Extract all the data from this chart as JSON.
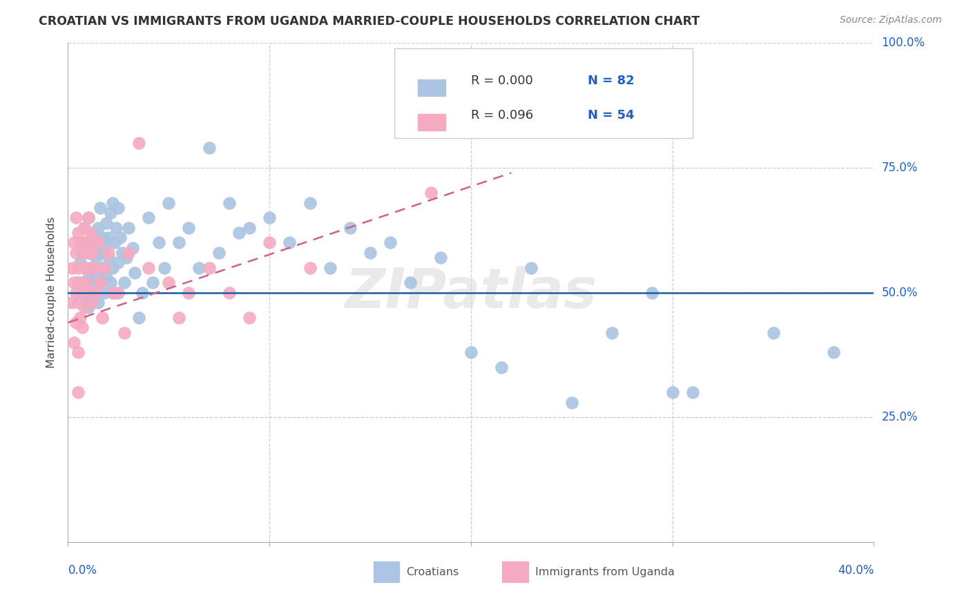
{
  "title": "CROATIAN VS IMMIGRANTS FROM UGANDA MARRIED-COUPLE HOUSEHOLDS CORRELATION CHART",
  "source": "Source: ZipAtlas.com",
  "ylabel": "Married-couple Households",
  "legend1_r": "0.000",
  "legend1_n": "82",
  "legend2_r": "0.096",
  "legend2_n": "54",
  "blue_color": "#aac4e2",
  "pink_color": "#f5aac0",
  "blue_line_color": "#1a5ca8",
  "pink_line_color": "#d06080",
  "watermark": "ZIPatlas",
  "background_color": "#ffffff",
  "xlim": [
    0.0,
    0.4
  ],
  "ylim": [
    0.0,
    1.0
  ],
  "blue_trendline": [
    0.0,
    0.4,
    0.5,
    0.5
  ],
  "pink_trendline": [
    0.0,
    0.22,
    0.44,
    0.74
  ],
  "croatians_x": [
    0.005,
    0.006,
    0.007,
    0.008,
    0.008,
    0.009,
    0.009,
    0.01,
    0.01,
    0.01,
    0.01,
    0.011,
    0.011,
    0.012,
    0.012,
    0.013,
    0.013,
    0.014,
    0.014,
    0.015,
    0.015,
    0.015,
    0.016,
    0.016,
    0.017,
    0.017,
    0.018,
    0.018,
    0.019,
    0.019,
    0.02,
    0.02,
    0.021,
    0.021,
    0.022,
    0.022,
    0.023,
    0.023,
    0.024,
    0.025,
    0.025,
    0.026,
    0.027,
    0.028,
    0.029,
    0.03,
    0.032,
    0.033,
    0.035,
    0.037,
    0.04,
    0.042,
    0.045,
    0.048,
    0.05,
    0.055,
    0.06,
    0.065,
    0.07,
    0.075,
    0.08,
    0.085,
    0.09,
    0.1,
    0.11,
    0.12,
    0.13,
    0.14,
    0.15,
    0.16,
    0.17,
    0.185,
    0.2,
    0.215,
    0.23,
    0.25,
    0.27,
    0.3,
    0.35,
    0.38,
    0.29,
    0.31
  ],
  "croatians_y": [
    0.52,
    0.56,
    0.6,
    0.5,
    0.63,
    0.55,
    0.49,
    0.53,
    0.58,
    0.47,
    0.65,
    0.52,
    0.48,
    0.6,
    0.55,
    0.62,
    0.5,
    0.57,
    0.53,
    0.63,
    0.58,
    0.48,
    0.67,
    0.52,
    0.61,
    0.55,
    0.59,
    0.5,
    0.64,
    0.53,
    0.61,
    0.57,
    0.66,
    0.52,
    0.68,
    0.55,
    0.6,
    0.5,
    0.63,
    0.67,
    0.56,
    0.61,
    0.58,
    0.52,
    0.57,
    0.63,
    0.59,
    0.54,
    0.45,
    0.5,
    0.65,
    0.52,
    0.6,
    0.55,
    0.68,
    0.6,
    0.63,
    0.55,
    0.79,
    0.58,
    0.68,
    0.62,
    0.63,
    0.65,
    0.6,
    0.68,
    0.55,
    0.63,
    0.58,
    0.6,
    0.52,
    0.57,
    0.38,
    0.35,
    0.55,
    0.28,
    0.42,
    0.3,
    0.42,
    0.38,
    0.5,
    0.3
  ],
  "uganda_x": [
    0.002,
    0.002,
    0.003,
    0.003,
    0.003,
    0.004,
    0.004,
    0.004,
    0.004,
    0.005,
    0.005,
    0.005,
    0.005,
    0.005,
    0.006,
    0.006,
    0.006,
    0.007,
    0.007,
    0.007,
    0.008,
    0.008,
    0.008,
    0.009,
    0.009,
    0.01,
    0.01,
    0.01,
    0.011,
    0.011,
    0.012,
    0.012,
    0.013,
    0.014,
    0.015,
    0.016,
    0.017,
    0.018,
    0.02,
    0.022,
    0.025,
    0.028,
    0.03,
    0.035,
    0.04,
    0.05,
    0.055,
    0.06,
    0.07,
    0.08,
    0.09,
    0.1,
    0.12,
    0.18
  ],
  "uganda_y": [
    0.55,
    0.48,
    0.6,
    0.52,
    0.4,
    0.65,
    0.58,
    0.5,
    0.44,
    0.62,
    0.55,
    0.48,
    0.38,
    0.3,
    0.6,
    0.52,
    0.45,
    0.58,
    0.5,
    0.43,
    0.63,
    0.55,
    0.47,
    0.6,
    0.52,
    0.65,
    0.58,
    0.5,
    0.62,
    0.55,
    0.58,
    0.48,
    0.55,
    0.5,
    0.6,
    0.52,
    0.45,
    0.55,
    0.58,
    0.5,
    0.5,
    0.42,
    0.58,
    0.8,
    0.55,
    0.52,
    0.45,
    0.5,
    0.55,
    0.5,
    0.45,
    0.6,
    0.55,
    0.7
  ]
}
